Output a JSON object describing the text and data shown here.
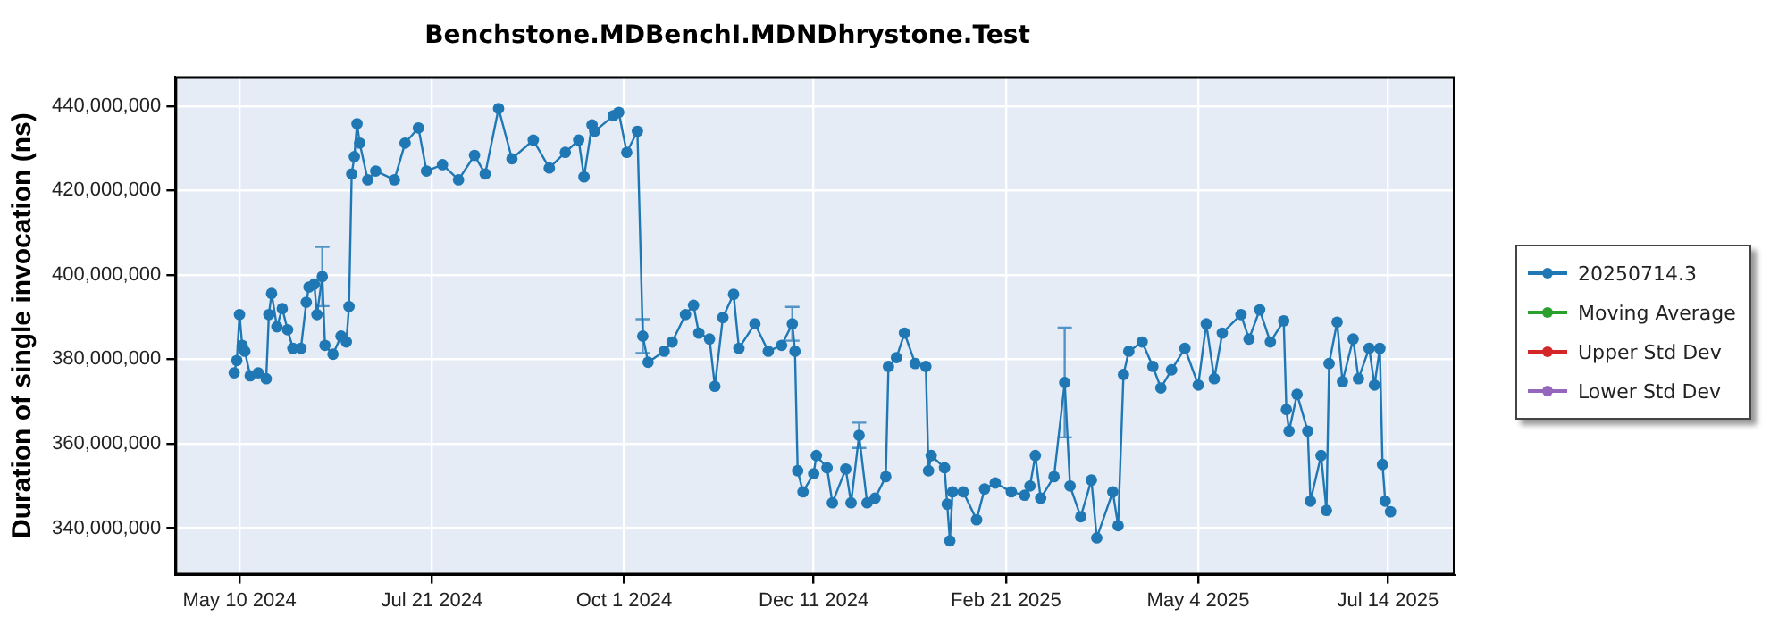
{
  "chart_data": {
    "type": "line",
    "title": "Benchstone.MDBenchI.MDNDhrystone.Test",
    "ylabel": "Duration of single invocation (ns)",
    "x": [
      "2024-05-08",
      "2024-05-09",
      "2024-05-10",
      "2024-05-11",
      "2024-05-12",
      "2024-05-14",
      "2024-05-17",
      "2024-05-20",
      "2024-05-21",
      "2024-05-22",
      "2024-05-24",
      "2024-05-26",
      "2024-05-28",
      "2024-05-30",
      "2024-06-02",
      "2024-06-04",
      "2024-06-05",
      "2024-06-07",
      "2024-06-08",
      "2024-06-10",
      "2024-06-11",
      "2024-06-14",
      "2024-06-17",
      "2024-06-19",
      "2024-06-20",
      "2024-06-21",
      "2024-06-22",
      "2024-06-23",
      "2024-06-24",
      "2024-06-27",
      "2024-06-30",
      "2024-07-07",
      "2024-07-11",
      "2024-07-16",
      "2024-07-19",
      "2024-07-25",
      "2024-07-31",
      "2024-08-06",
      "2024-08-10",
      "2024-08-15",
      "2024-08-20",
      "2024-08-28",
      "2024-09-03",
      "2024-09-09",
      "2024-09-14",
      "2024-09-16",
      "2024-09-19",
      "2024-09-20",
      "2024-09-27",
      "2024-09-29",
      "2024-10-02",
      "2024-10-06",
      "2024-10-08",
      "2024-10-10",
      "2024-10-16",
      "2024-10-19",
      "2024-10-24",
      "2024-10-27",
      "2024-10-29",
      "2024-11-02",
      "2024-11-04",
      "2024-11-07",
      "2024-11-11",
      "2024-11-13",
      "2024-11-19",
      "2024-11-24",
      "2024-11-29",
      "2024-12-03",
      "2024-12-04",
      "2024-12-05",
      "2024-12-07",
      "2024-12-11",
      "2024-12-12",
      "2024-12-16",
      "2024-12-18",
      "2024-12-23",
      "2024-12-25",
      "2024-12-28",
      "2024-12-31",
      "2025-01-03",
      "2025-01-07",
      "2025-01-08",
      "2025-01-11",
      "2025-01-14",
      "2025-01-18",
      "2025-01-22",
      "2025-01-23",
      "2025-01-24",
      "2025-01-29",
      "2025-01-30",
      "2025-01-31",
      "2025-02-01",
      "2025-02-05",
      "2025-02-10",
      "2025-02-13",
      "2025-02-17",
      "2025-02-23",
      "2025-02-28",
      "2025-03-02",
      "2025-03-04",
      "2025-03-06",
      "2025-03-11",
      "2025-03-15",
      "2025-03-17",
      "2025-03-21",
      "2025-03-25",
      "2025-03-27",
      "2025-04-02",
      "2025-04-04",
      "2025-04-06",
      "2025-04-08",
      "2025-04-13",
      "2025-04-17",
      "2025-04-20",
      "2025-04-24",
      "2025-04-29",
      "2025-05-04",
      "2025-05-07",
      "2025-05-10",
      "2025-05-13",
      "2025-05-20",
      "2025-05-23",
      "2025-05-27",
      "2025-05-31",
      "2025-06-05",
      "2025-06-06",
      "2025-06-07",
      "2025-06-10",
      "2025-06-14",
      "2025-06-15",
      "2025-06-19",
      "2025-06-21",
      "2025-06-22",
      "2025-06-25",
      "2025-06-27",
      "2025-07-01",
      "2025-07-03",
      "2025-07-07",
      "2025-07-09",
      "2025-07-11",
      "2025-07-12",
      "2025-07-13",
      "2025-07-15"
    ],
    "series": [
      {
        "name": "20250714.3",
        "color": "#1f77b4",
        "values": [
          376800000,
          379700000,
          390600000,
          383300000,
          381900000,
          376100000,
          376800000,
          375400000,
          390600000,
          395600000,
          387700000,
          392000000,
          387000000,
          382600000,
          382600000,
          393500000,
          397100000,
          397800000,
          390600000,
          399600000,
          383300000,
          381200000,
          385500000,
          384100000,
          392500000,
          423900000,
          428000000,
          435800000,
          431200000,
          422500000,
          424600000,
          422500000,
          431200000,
          434800000,
          424600000,
          426100000,
          422500000,
          428300000,
          423900000,
          439400000,
          427500000,
          431900000,
          425300000,
          429000000,
          431900000,
          423200000,
          435500000,
          434000000,
          437700000,
          438500000,
          429000000,
          434000000,
          385500000,
          379300000,
          381900000,
          384100000,
          390600000,
          392800000,
          386200000,
          384800000,
          373600000,
          389900000,
          395400000,
          382600000,
          388400000,
          381900000,
          383300000,
          388400000,
          381900000,
          353600000,
          348600000,
          352900000,
          357200000,
          354300000,
          346000000,
          354000000,
          346000000,
          362000000,
          346000000,
          347100000,
          352200000,
          378300000,
          380400000,
          386200000,
          379000000,
          378300000,
          353600000,
          357200000,
          354300000,
          345700000,
          337000000,
          348600000,
          348600000,
          342000000,
          349300000,
          350700000,
          348600000,
          347800000,
          350000000,
          357200000,
          347100000,
          352200000,
          374500000,
          350000000,
          342700000,
          351400000,
          337700000,
          348600000,
          340600000,
          376400000,
          381900000,
          384100000,
          378300000,
          373200000,
          377500000,
          382600000,
          373900000,
          388400000,
          375400000,
          386200000,
          390600000,
          384800000,
          391700000,
          384100000,
          389100000,
          368100000,
          363000000,
          371700000,
          363000000,
          346400000,
          357200000,
          344200000,
          379000000,
          388800000,
          374700000,
          384800000,
          375400000,
          382600000,
          373900000,
          382600000,
          355100000,
          346400000,
          343900000
        ],
        "errors": [
          null,
          null,
          null,
          null,
          null,
          null,
          null,
          null,
          null,
          null,
          null,
          null,
          null,
          null,
          null,
          null,
          null,
          null,
          null,
          7000000,
          null,
          null,
          null,
          null,
          null,
          null,
          null,
          null,
          null,
          null,
          null,
          null,
          null,
          null,
          null,
          null,
          null,
          null,
          null,
          null,
          null,
          null,
          null,
          null,
          null,
          null,
          null,
          null,
          null,
          null,
          null,
          null,
          4000000,
          null,
          null,
          null,
          null,
          null,
          null,
          null,
          null,
          null,
          null,
          null,
          null,
          null,
          null,
          4000000,
          null,
          null,
          null,
          null,
          null,
          null,
          null,
          null,
          null,
          3000000,
          null,
          null,
          null,
          null,
          null,
          null,
          null,
          null,
          null,
          null,
          null,
          null,
          null,
          null,
          null,
          null,
          null,
          null,
          null,
          null,
          null,
          null,
          null,
          null,
          13000000,
          null,
          null,
          null,
          null,
          null,
          null,
          null,
          null,
          null,
          null,
          null,
          null,
          null,
          null,
          null,
          null,
          null,
          null,
          null,
          null,
          null,
          null,
          null,
          null,
          null,
          null,
          null,
          null,
          null,
          null,
          null,
          null,
          null,
          null,
          null,
          null,
          null,
          null,
          null,
          null
        ]
      },
      {
        "name": "Moving Average",
        "color": "#2ca02c",
        "values": [
          null,
          null,
          null,
          null,
          null,
          null,
          null,
          null,
          null,
          null,
          null,
          null,
          null,
          null,
          null,
          null,
          null,
          null,
          null,
          null,
          null,
          null,
          null,
          null,
          null,
          null,
          null,
          null,
          null,
          null,
          null,
          null,
          null,
          null,
          null,
          null,
          null,
          null,
          null,
          null,
          null,
          null,
          null,
          null,
          null,
          null,
          null,
          null,
          null,
          null,
          null,
          null,
          null,
          null,
          null,
          null,
          null,
          null,
          null,
          null,
          null,
          null,
          null,
          null,
          null,
          null,
          null,
          null,
          null,
          null,
          null,
          null,
          null,
          null,
          null,
          null,
          null,
          null,
          null,
          null,
          null,
          null,
          null,
          null,
          null,
          null,
          null,
          null,
          null,
          null,
          null,
          null,
          null,
          null,
          null,
          null,
          null,
          null,
          null,
          null,
          null,
          null,
          null,
          null,
          null,
          null,
          null,
          null,
          null,
          null,
          null,
          null,
          null,
          null,
          null,
          null,
          null,
          null,
          null,
          null,
          null,
          null,
          null,
          null,
          null,
          null,
          null,
          null,
          null,
          null,
          null,
          null,
          null,
          null,
          null,
          null,
          null,
          null,
          null,
          null,
          null,
          null,
          null
        ]
      },
      {
        "name": "Upper Std Dev",
        "color": "#d62728",
        "values": [
          null,
          null,
          null,
          null,
          null,
          null,
          null,
          null,
          null,
          null,
          null,
          null,
          null,
          null,
          null,
          null,
          null,
          null,
          null,
          null,
          null,
          null,
          null,
          null,
          null,
          null,
          null,
          null,
          null,
          null,
          null,
          null,
          null,
          null,
          null,
          null,
          null,
          null,
          null,
          null,
          null,
          null,
          null,
          null,
          null,
          null,
          null,
          null,
          null,
          null,
          null,
          null,
          null,
          null,
          null,
          null,
          null,
          null,
          null,
          null,
          null,
          null,
          null,
          null,
          null,
          null,
          null,
          null,
          null,
          null,
          null,
          null,
          null,
          null,
          null,
          null,
          null,
          null,
          null,
          null,
          null,
          null,
          null,
          null,
          null,
          null,
          null,
          null,
          null,
          null,
          null,
          null,
          null,
          null,
          null,
          null,
          null,
          null,
          null,
          null,
          null,
          null,
          null,
          null,
          null,
          null,
          null,
          null,
          null,
          null,
          null,
          null,
          null,
          null,
          null,
          null,
          null,
          null,
          null,
          null,
          null,
          null,
          null,
          null,
          null,
          null,
          null,
          null,
          null,
          null,
          null,
          null,
          null,
          null,
          null,
          null,
          null,
          null,
          null,
          null,
          null,
          null,
          null
        ]
      },
      {
        "name": "Lower Std Dev",
        "color": "#9467bd",
        "values": [
          null,
          null,
          null,
          null,
          null,
          null,
          null,
          null,
          null,
          null,
          null,
          null,
          null,
          null,
          null,
          null,
          null,
          null,
          null,
          null,
          null,
          null,
          null,
          null,
          null,
          null,
          null,
          null,
          null,
          null,
          null,
          null,
          null,
          null,
          null,
          null,
          null,
          null,
          null,
          null,
          null,
          null,
          null,
          null,
          null,
          null,
          null,
          null,
          null,
          null,
          null,
          null,
          null,
          null,
          null,
          null,
          null,
          null,
          null,
          null,
          null,
          null,
          null,
          null,
          null,
          null,
          null,
          null,
          null,
          null,
          null,
          null,
          null,
          null,
          null,
          null,
          null,
          null,
          null,
          null,
          null,
          null,
          null,
          null,
          null,
          null,
          null,
          null,
          null,
          null,
          null,
          null,
          null,
          null,
          null,
          null,
          null,
          null,
          null,
          null,
          null,
          null,
          null,
          null,
          null,
          null,
          null,
          null,
          null,
          null,
          null,
          null,
          null,
          null,
          null,
          null,
          null,
          null,
          null,
          null,
          null,
          null,
          null,
          null,
          null,
          null,
          null,
          null,
          null,
          null,
          null,
          null,
          null,
          null,
          null,
          null,
          null,
          null,
          null,
          null,
          null,
          null,
          null
        ]
      }
    ],
    "xlim": [
      "2024-04-16",
      "2025-08-08"
    ],
    "xticks": [
      {
        "value": "2024-05-10",
        "label": "May 10 2024"
      },
      {
        "value": "2024-07-21",
        "label": "Jul 21 2024"
      },
      {
        "value": "2024-10-01",
        "label": "Oct 1 2024"
      },
      {
        "value": "2024-12-11",
        "label": "Dec 11 2024"
      },
      {
        "value": "2025-02-21",
        "label": "Feb 21 2025"
      },
      {
        "value": "2025-05-04",
        "label": "May 4 2025"
      },
      {
        "value": "2025-07-14",
        "label": "Jul 14 2025"
      }
    ],
    "ylim": [
      329000000,
      447000000
    ],
    "yticks": [
      {
        "value": 340000000,
        "label": "340,000,000"
      },
      {
        "value": 360000000,
        "label": "360,000,000"
      },
      {
        "value": 380000000,
        "label": "380,000,000"
      },
      {
        "value": 400000000,
        "label": "400,000,000"
      },
      {
        "value": 420000000,
        "label": "420,000,000"
      },
      {
        "value": 440000000,
        "label": "440,000,000"
      }
    ],
    "grid": true,
    "legend": "right",
    "marker": "circle",
    "line_style": "solid"
  }
}
